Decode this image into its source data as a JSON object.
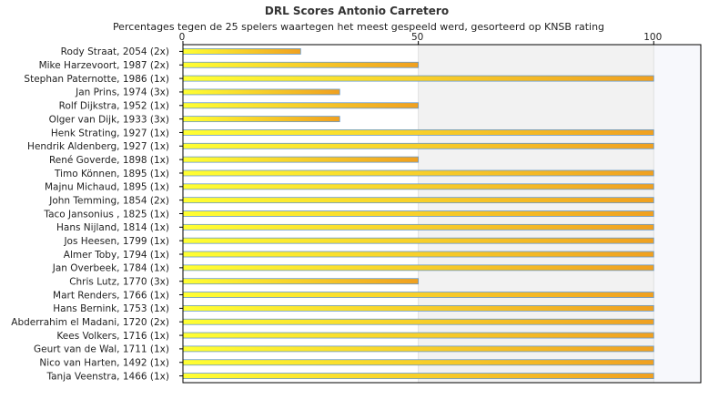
{
  "chart_data": {
    "type": "bar",
    "orientation": "horizontal",
    "title": "DRL Scores Antonio Carretero",
    "subtitle": "Percentages tegen de 25 spelers waartegen het meest gespeeld werd, gesorteerd op KNSB rating",
    "xlim": [
      0,
      110
    ],
    "xticks": [
      0,
      50,
      100
    ],
    "categories": [
      "Rody Straat, 2054 (2x)",
      "Mike Harzevoort, 1987 (2x)",
      "Stephan Paternotte, 1986 (1x)",
      "Jan Prins, 1974 (3x)",
      "Rolf Dijkstra, 1952 (1x)",
      "Olger van Dijk, 1933 (3x)",
      "Henk Strating, 1927 (1x)",
      "Hendrik Aldenberg, 1927 (1x)",
      "René Goverde, 1898 (1x)",
      "Timo Können, 1895 (1x)",
      "Majnu Michaud, 1895 (1x)",
      "John Temming, 1854 (2x)",
      "Taco Jansonius , 1825 (1x)",
      "Hans Nijland, 1814 (1x)",
      "Jos Heesen, 1799 (1x)",
      "Almer Toby, 1794 (1x)",
      "Jan Overbeek, 1784 (1x)",
      "Chris Lutz, 1770 (3x)",
      "Mart Renders, 1766 (1x)",
      "Hans Bernink, 1753 (1x)",
      "Abderrahim el Madani, 1720 (2x)",
      "Kees Volkers, 1716 (1x)",
      "Geurt van de Wal, 1711 (1x)",
      "Nico van Harten, 1492 (1x)",
      "Tanja Veenstra, 1466 (1x)"
    ],
    "values": [
      25,
      50,
      100,
      33.3,
      50,
      33.3,
      100,
      100,
      50,
      100,
      100,
      100,
      100,
      100,
      100,
      100,
      100,
      50,
      100,
      100,
      100,
      100,
      100,
      100,
      100
    ],
    "grid": true,
    "legend": "none",
    "colors": {
      "bar_start": "#ffff33",
      "bar_end": "#f0a020",
      "bar_stroke": "#6699cc",
      "band_light": "#ffffff",
      "band_dark": "#f2f2f2",
      "band_last": "#f7f8fc",
      "axis": "#000000"
    }
  }
}
